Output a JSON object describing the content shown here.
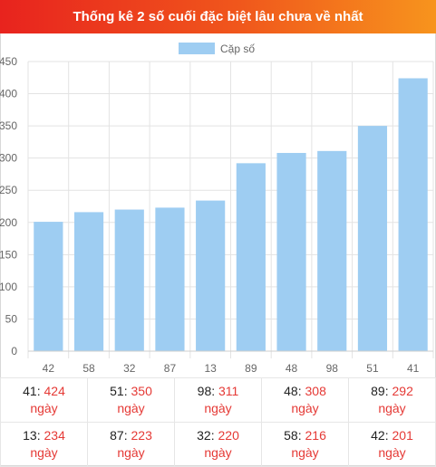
{
  "header": {
    "title": "Thống kê 2 số cuối đặc biệt lâu chưa về nhất"
  },
  "chart_data": {
    "type": "bar",
    "legend": {
      "label": "Cặp số",
      "color": "#9ecdf2",
      "position": "top"
    },
    "categories": [
      "42",
      "58",
      "32",
      "87",
      "13",
      "89",
      "48",
      "98",
      "51",
      "41"
    ],
    "series": [
      {
        "name": "Cặp số",
        "values": [
          201,
          216,
          220,
          223,
          234,
          292,
          308,
          311,
          350,
          424
        ]
      }
    ],
    "ylim": [
      0,
      450
    ],
    "yticks": [
      0,
      50,
      100,
      150,
      200,
      250,
      300,
      350,
      400,
      450
    ],
    "grid": true,
    "bar_color": "#9ecdf2"
  },
  "summary": {
    "unit": "ngày",
    "rows": [
      [
        {
          "pair": "41",
          "days": "424"
        },
        {
          "pair": "51",
          "days": "350"
        },
        {
          "pair": "98",
          "days": "311"
        },
        {
          "pair": "48",
          "days": "308"
        },
        {
          "pair": "89",
          "days": "292"
        }
      ],
      [
        {
          "pair": "13",
          "days": "234"
        },
        {
          "pair": "87",
          "days": "223"
        },
        {
          "pair": "32",
          "days": "220"
        },
        {
          "pair": "58",
          "days": "216"
        },
        {
          "pair": "42",
          "days": "201"
        }
      ]
    ]
  }
}
